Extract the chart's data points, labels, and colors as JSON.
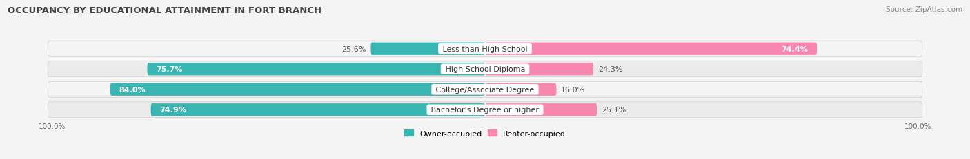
{
  "title": "OCCUPANCY BY EDUCATIONAL ATTAINMENT IN FORT BRANCH",
  "source": "Source: ZipAtlas.com",
  "categories": [
    "Less than High School",
    "High School Diploma",
    "College/Associate Degree",
    "Bachelor's Degree or higher"
  ],
  "owner_values": [
    25.6,
    75.7,
    84.0,
    74.9
  ],
  "renter_values": [
    74.4,
    24.3,
    16.0,
    25.1
  ],
  "owner_color": "#39b5b2",
  "renter_color": "#f887b0",
  "bar_height": 0.62,
  "background_color": "#f4f4f4",
  "bar_bg_color": "#e2e2e2",
  "row_bg_even": "#ebebeb",
  "row_bg_odd": "#f4f4f4",
  "title_fontsize": 9.5,
  "label_fontsize": 8,
  "value_fontsize": 8,
  "source_fontsize": 7.5,
  "legend_fontsize": 8,
  "axis_label_fontsize": 7.5
}
